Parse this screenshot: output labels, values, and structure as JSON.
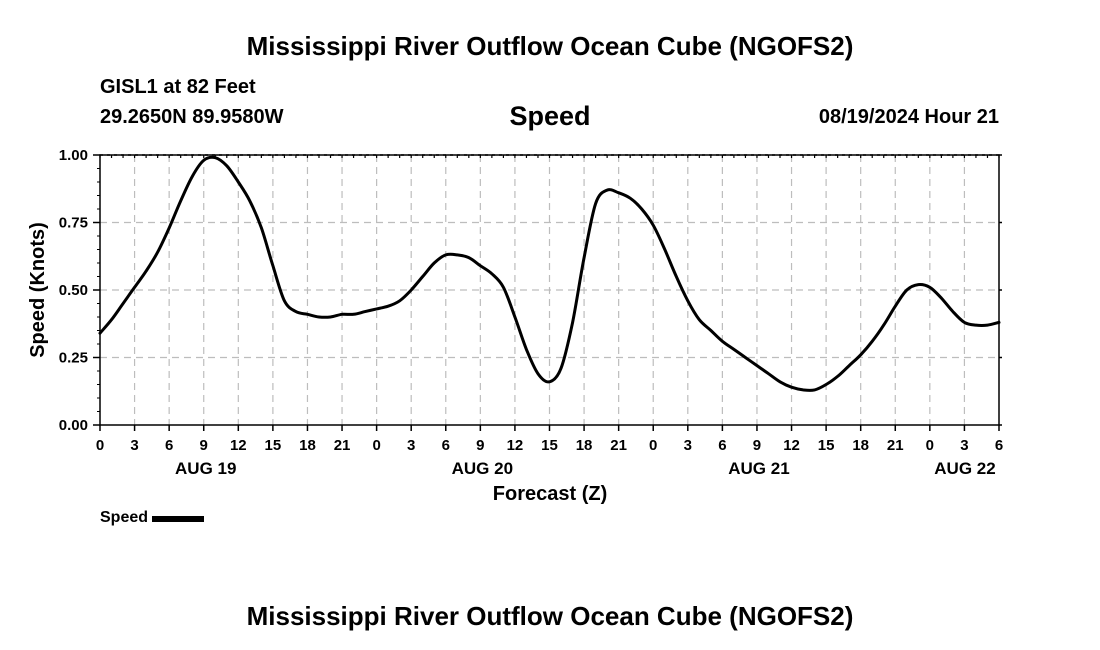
{
  "header": {
    "title": "Mississippi River Outflow Ocean Cube (NGOFS2)",
    "station": "GISL1 at 82 Feet",
    "coords": "29.2650N  89.9580W",
    "variable": "Speed",
    "datetime": "08/19/2024 Hour 21"
  },
  "footer": {
    "title": "Mississippi River Outflow Ocean Cube (NGOFS2)"
  },
  "chart_data": {
    "type": "line",
    "title": "Speed",
    "xlabel": "Forecast (Z)",
    "ylabel": "Speed (Knots)",
    "ylim": [
      0,
      1
    ],
    "xlim": [
      0,
      78
    ],
    "x_unit": "forecast hours from 08/19 00Z",
    "y_ticks": [
      "0.00",
      "0.25",
      "0.50",
      "0.75",
      "1.00"
    ],
    "x_tick_labels": [
      "0",
      "3",
      "6",
      "9",
      "12",
      "15",
      "18",
      "21",
      "0",
      "3",
      "6",
      "9",
      "12",
      "15",
      "18",
      "21",
      "0",
      "3",
      "6",
      "9",
      "12",
      "15",
      "18",
      "21",
      "0",
      "3",
      "6"
    ],
    "day_labels": [
      "AUG 19",
      "AUG 20",
      "AUG 21",
      "AUG 22"
    ],
    "grid": true,
    "legend": "bottom-left",
    "series": [
      {
        "name": "Speed",
        "color": "#000000",
        "x": [
          0,
          1,
          2,
          3,
          4,
          5,
          6,
          7,
          8,
          9,
          10,
          11,
          12,
          13,
          14,
          15,
          16,
          17,
          18,
          19,
          20,
          21,
          22,
          23,
          24,
          25,
          26,
          27,
          28,
          29,
          30,
          31,
          32,
          33,
          34,
          35,
          36,
          37,
          38,
          39,
          40,
          41,
          42,
          43,
          44,
          45,
          46,
          47,
          48,
          49,
          50,
          51,
          52,
          53,
          54,
          55,
          56,
          57,
          58,
          59,
          60,
          61,
          62,
          63,
          64,
          65,
          66,
          67,
          68,
          69,
          70,
          71,
          72,
          73,
          74,
          75,
          76,
          77,
          78
        ],
        "y": [
          0.34,
          0.39,
          0.45,
          0.51,
          0.57,
          0.64,
          0.73,
          0.83,
          0.92,
          0.98,
          0.99,
          0.96,
          0.9,
          0.83,
          0.73,
          0.59,
          0.46,
          0.42,
          0.41,
          0.4,
          0.4,
          0.41,
          0.41,
          0.42,
          0.43,
          0.44,
          0.46,
          0.5,
          0.55,
          0.6,
          0.63,
          0.63,
          0.62,
          0.59,
          0.56,
          0.51,
          0.4,
          0.28,
          0.19,
          0.16,
          0.21,
          0.38,
          0.62,
          0.82,
          0.87,
          0.86,
          0.84,
          0.8,
          0.74,
          0.65,
          0.55,
          0.46,
          0.39,
          0.35,
          0.31,
          0.28,
          0.25,
          0.22,
          0.19,
          0.16,
          0.14,
          0.13,
          0.13,
          0.15,
          0.18,
          0.22,
          0.26,
          0.31,
          0.37,
          0.44,
          0.5,
          0.52,
          0.51,
          0.47,
          0.42,
          0.38,
          0.37,
          0.37,
          0.38
        ]
      }
    ]
  }
}
